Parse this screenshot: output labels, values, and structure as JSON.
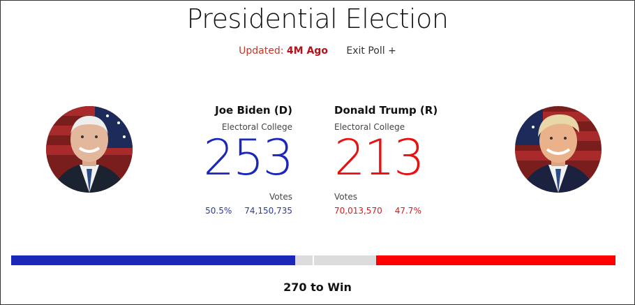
{
  "header": {
    "title": "Presidential Election",
    "updated_label": "Updated:",
    "updated_value": "4M Ago",
    "exit_poll": "Exit Poll +"
  },
  "candidates": {
    "dem": {
      "name": "Joe Biden (D)",
      "ec_label": "Electoral College",
      "electoral_votes": "253",
      "votes_label": "Votes",
      "vote_pct": "50.5%",
      "vote_count": "74,150,735",
      "color": "#1a27b8"
    },
    "rep": {
      "name": "Donald Trump (R)",
      "ec_label": "Electoral College",
      "electoral_votes": "213",
      "votes_label": "Votes",
      "vote_count": "70,013,570",
      "vote_pct": "47.7%",
      "color": "#e81010"
    }
  },
  "progress": {
    "total_electoral": 538,
    "dem_electoral": 253,
    "rep_electoral": 213,
    "win_threshold": 270
  },
  "footer": {
    "to_win": "270 to Win"
  }
}
